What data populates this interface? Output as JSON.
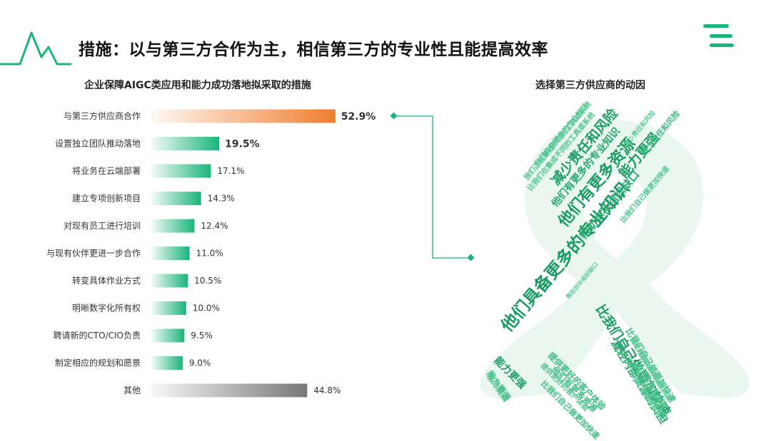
{
  "header": {
    "title": "措施：以与第三方合作为主，相信第三方的专业性且能提高效率"
  },
  "colors": {
    "accent": "#1bb57a",
    "highlight": "#f07d2e",
    "other": "#777777",
    "cloud_bg": "#eaf7f0"
  },
  "chart_data": {
    "type": "bar",
    "orientation": "horizontal",
    "title": "企业保障AIGC类应用和能力成功落地拟采取的措施",
    "xlabel": "",
    "ylabel": "",
    "xlim": [
      0,
      55
    ],
    "grid": false,
    "categories": [
      "与第三方供应商合作",
      "设置独立团队推动落地",
      "将业务在云端部署",
      "建立专项创新项目",
      "对现有员工进行培训",
      "与现有伙伴更进一步合作",
      "转变具体作业方式",
      "明晰数字化所有权",
      "聘请新的CTO/CIO负责",
      "制定相应的规划和愿景",
      "其他"
    ],
    "values": [
      52.9,
      19.5,
      17.1,
      14.3,
      12.4,
      11.0,
      10.5,
      10.0,
      9.5,
      9.0,
      44.8
    ],
    "value_labels": [
      "52.9%",
      "19.5%",
      "17.1%",
      "14.3%",
      "12.4%",
      "11.0%",
      "10.5%",
      "10.0%",
      "9.5%",
      "9.0%",
      "44.8%"
    ]
  },
  "wordcloud": {
    "title": "选择第三方供应商的动因",
    "words": [
      "他们具备更多的专业知识",
      "比我们自己做更加快速",
      "他们有更多资源",
      "减少责任和风险",
      "能力更强",
      "帮助弥补组织缺口",
      "他们有更多的专业知识",
      "减轻内部资源的负担",
      "减少责任和风险",
      "比我们自己做更加快速",
      "能力更强",
      "提供更好的客户体验",
      "他们有更多资源",
      "比我们自己做更加快速",
      "能力更强",
      "我们正在集成不同的工具或系统",
      "比我们在集成不同的工具或系统",
      "比我们自己做更加快速",
      "帮助弥补组织缺口",
      "他们有更多资源",
      "比我们自己做更加快速",
      "他们具备更多的专业知识",
      "减少责任和风险",
      "他们有更多资源",
      "提供更好的客户体验",
      "减轻内部资源的负担",
      "比我们自己做更加快速",
      "能力更强"
    ]
  }
}
